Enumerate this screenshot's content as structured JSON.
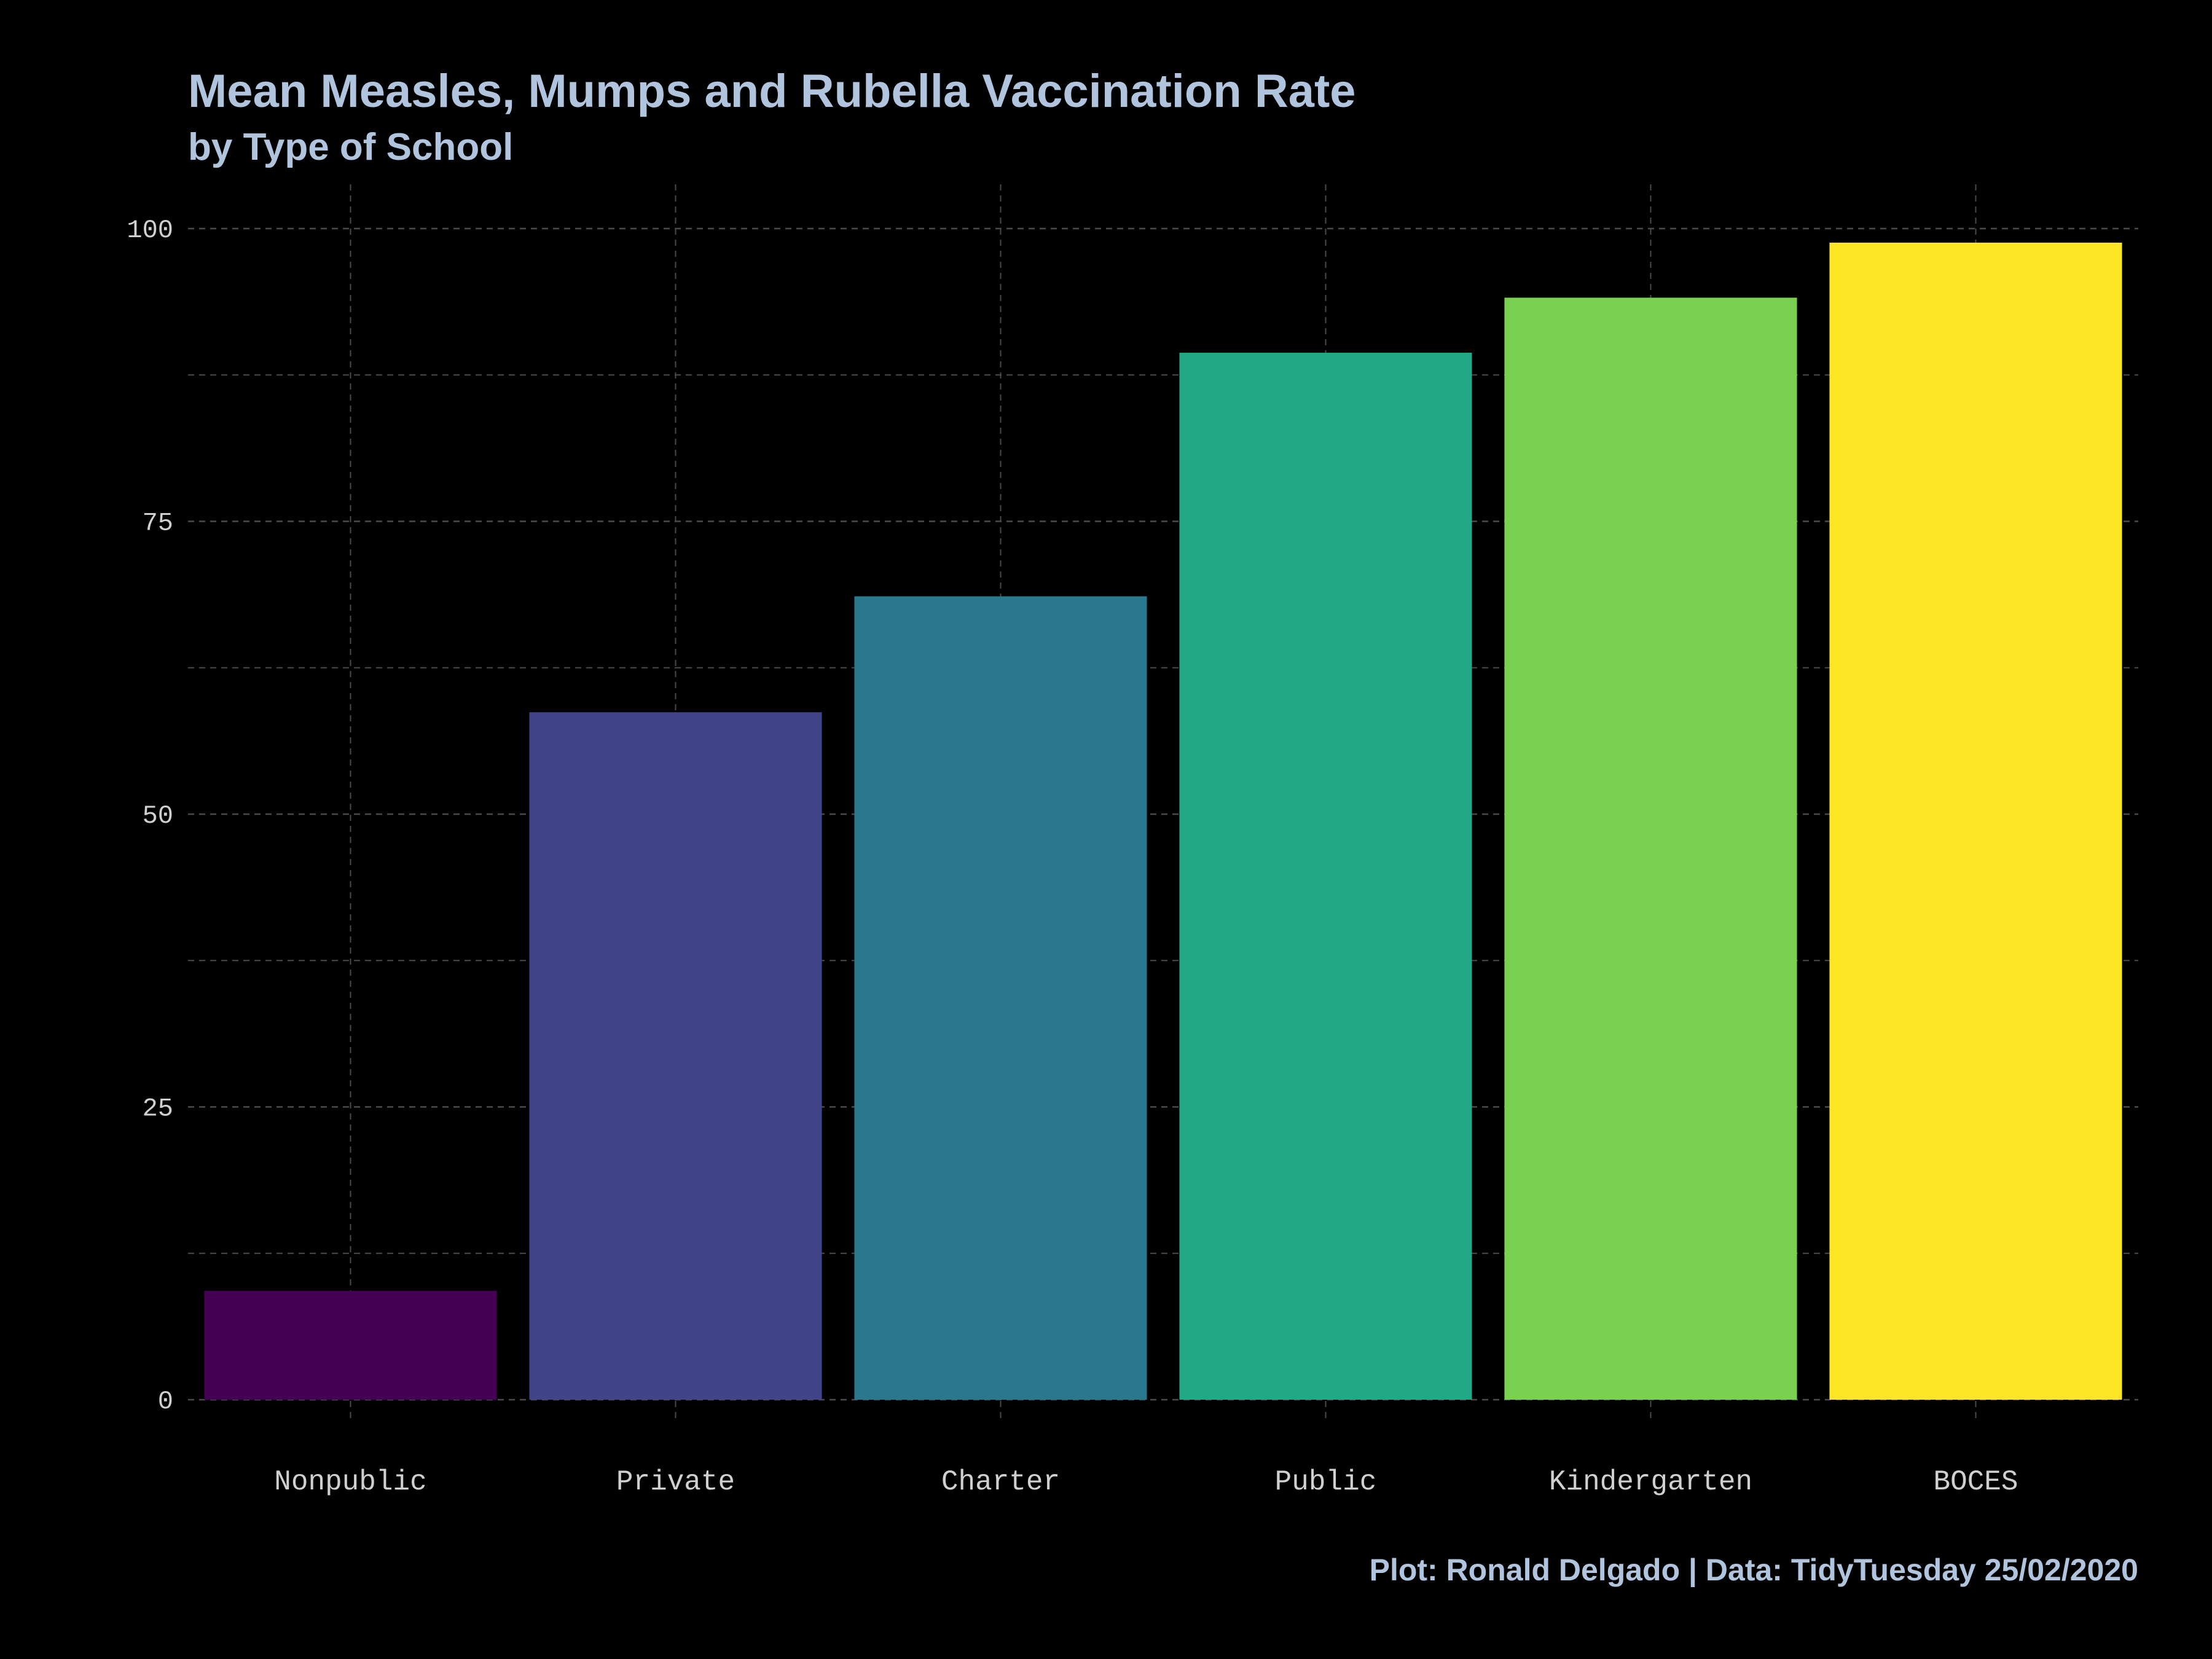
{
  "colors": {
    "background": "#000000",
    "title": "#b0c4de",
    "grid": "#4a4a4a",
    "tick_label": "#d0d0d0"
  },
  "chart_data": {
    "type": "bar",
    "title": "Mean Measles, Mumps and Rubella Vaccination Rate",
    "subtitle": "by Type of School",
    "caption": "Plot: Ronald Delgado | Data: TidyTuesday 25/02/2020",
    "xlabel": "",
    "ylabel": "",
    "categories": [
      "Nonpublic",
      "Private",
      "Charter",
      "Public",
      "Kindergarten",
      "BOCES"
    ],
    "values": [
      9.3,
      58.7,
      68.6,
      89.4,
      94.1,
      98.8
    ],
    "bar_colors": [
      "#440154",
      "#414487",
      "#2a788e",
      "#22a884",
      "#7ad151",
      "#fde725"
    ],
    "ylim": [
      0,
      100
    ],
    "y_ticks": [
      "0",
      "25",
      "50",
      "75",
      "100"
    ],
    "grid": true,
    "grid_style": "dashed",
    "legend": "none"
  }
}
